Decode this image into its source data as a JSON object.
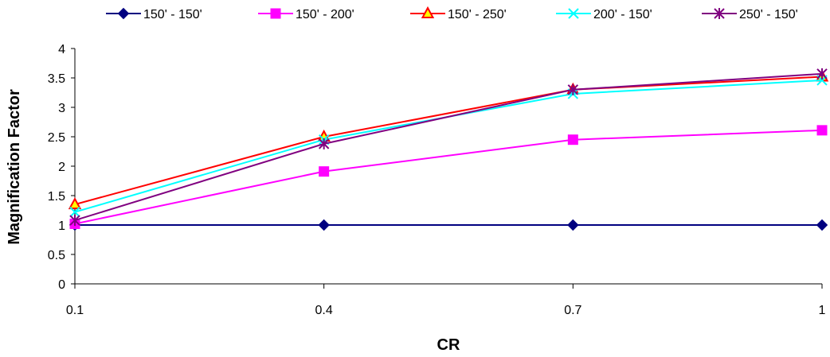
{
  "chart_data": {
    "type": "line",
    "title": "",
    "xlabel": "CR",
    "ylabel": "Magnification Factor",
    "x": [
      0.1,
      0.4,
      0.7,
      1
    ],
    "x_tick_labels": [
      "0.1",
      "0.4",
      "0.7",
      "1"
    ],
    "ylim": [
      0,
      4
    ],
    "y_ticks": [
      0,
      0.5,
      1,
      1.5,
      2,
      2.5,
      3,
      3.5,
      4
    ],
    "y_tick_labels": [
      "0",
      "0.5",
      "1",
      "1.5",
      "2",
      "2.5",
      "3",
      "3.5",
      "4"
    ],
    "grid": false,
    "legend_position": "top",
    "series": [
      {
        "name": "150' - 150'",
        "color": "#000080",
        "marker": "diamond",
        "values": [
          1.0,
          1.0,
          1.0,
          1.0
        ]
      },
      {
        "name": "150' - 200'",
        "color": "#FF00FF",
        "marker": "square",
        "values": [
          1.02,
          1.91,
          2.45,
          2.61
        ]
      },
      {
        "name": "150' - 250'",
        "color": "#FF0000",
        "marker": "triangle",
        "values": [
          1.35,
          2.5,
          3.3,
          3.52
        ]
      },
      {
        "name": "200' - 150'",
        "color": "#00FFFF",
        "marker": "x",
        "values": [
          1.22,
          2.45,
          3.23,
          3.46
        ]
      },
      {
        "name": "250' - 150'",
        "color": "#800080",
        "marker": "star",
        "values": [
          1.08,
          2.38,
          3.3,
          3.57
        ]
      }
    ]
  }
}
